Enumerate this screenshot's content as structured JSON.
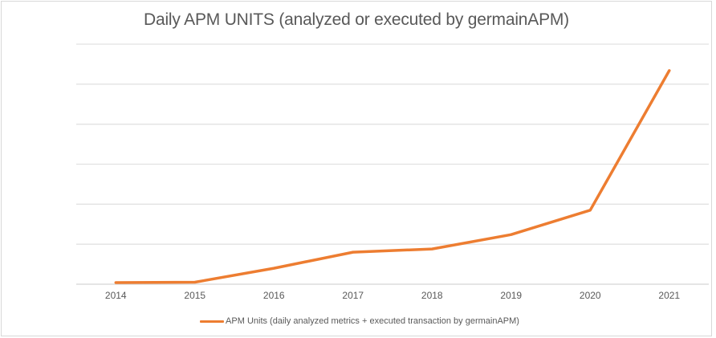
{
  "colors": {
    "accent_orange": "#ED7D31",
    "gridline": "#E2E2E2",
    "axis_line": "#D5D5D5",
    "text_gray": "#595959",
    "frame_border": "#D8D8D8"
  },
  "chart_data": {
    "type": "line",
    "title": "Daily APM UNITS (analyzed or executed by germainAPM)",
    "categories": [
      "2014",
      "2015",
      "2016",
      "2017",
      "2018",
      "2019",
      "2020",
      "2021"
    ],
    "series": [
      {
        "name": "APM Units (daily analyzed metrics + executed transaction by germainAPM)",
        "color": "#ED7D31",
        "values": [
          0.04,
          0.05,
          0.4,
          0.8,
          0.88,
          1.24,
          1.85,
          5.34
        ]
      }
    ],
    "xlabel": "",
    "ylabel": "",
    "ylim": [
      0,
      6
    ],
    "gridline_step": 1,
    "y_axis_labels_visible": false,
    "values_note": "y-axis is unlabeled; values estimated in gridline units (1 = one gridline interval above baseline)",
    "grid": "horizontal only",
    "legend_position": "bottom-center"
  },
  "legend": {
    "label": "APM Units (daily analyzed metrics + executed transaction by germainAPM)"
  }
}
